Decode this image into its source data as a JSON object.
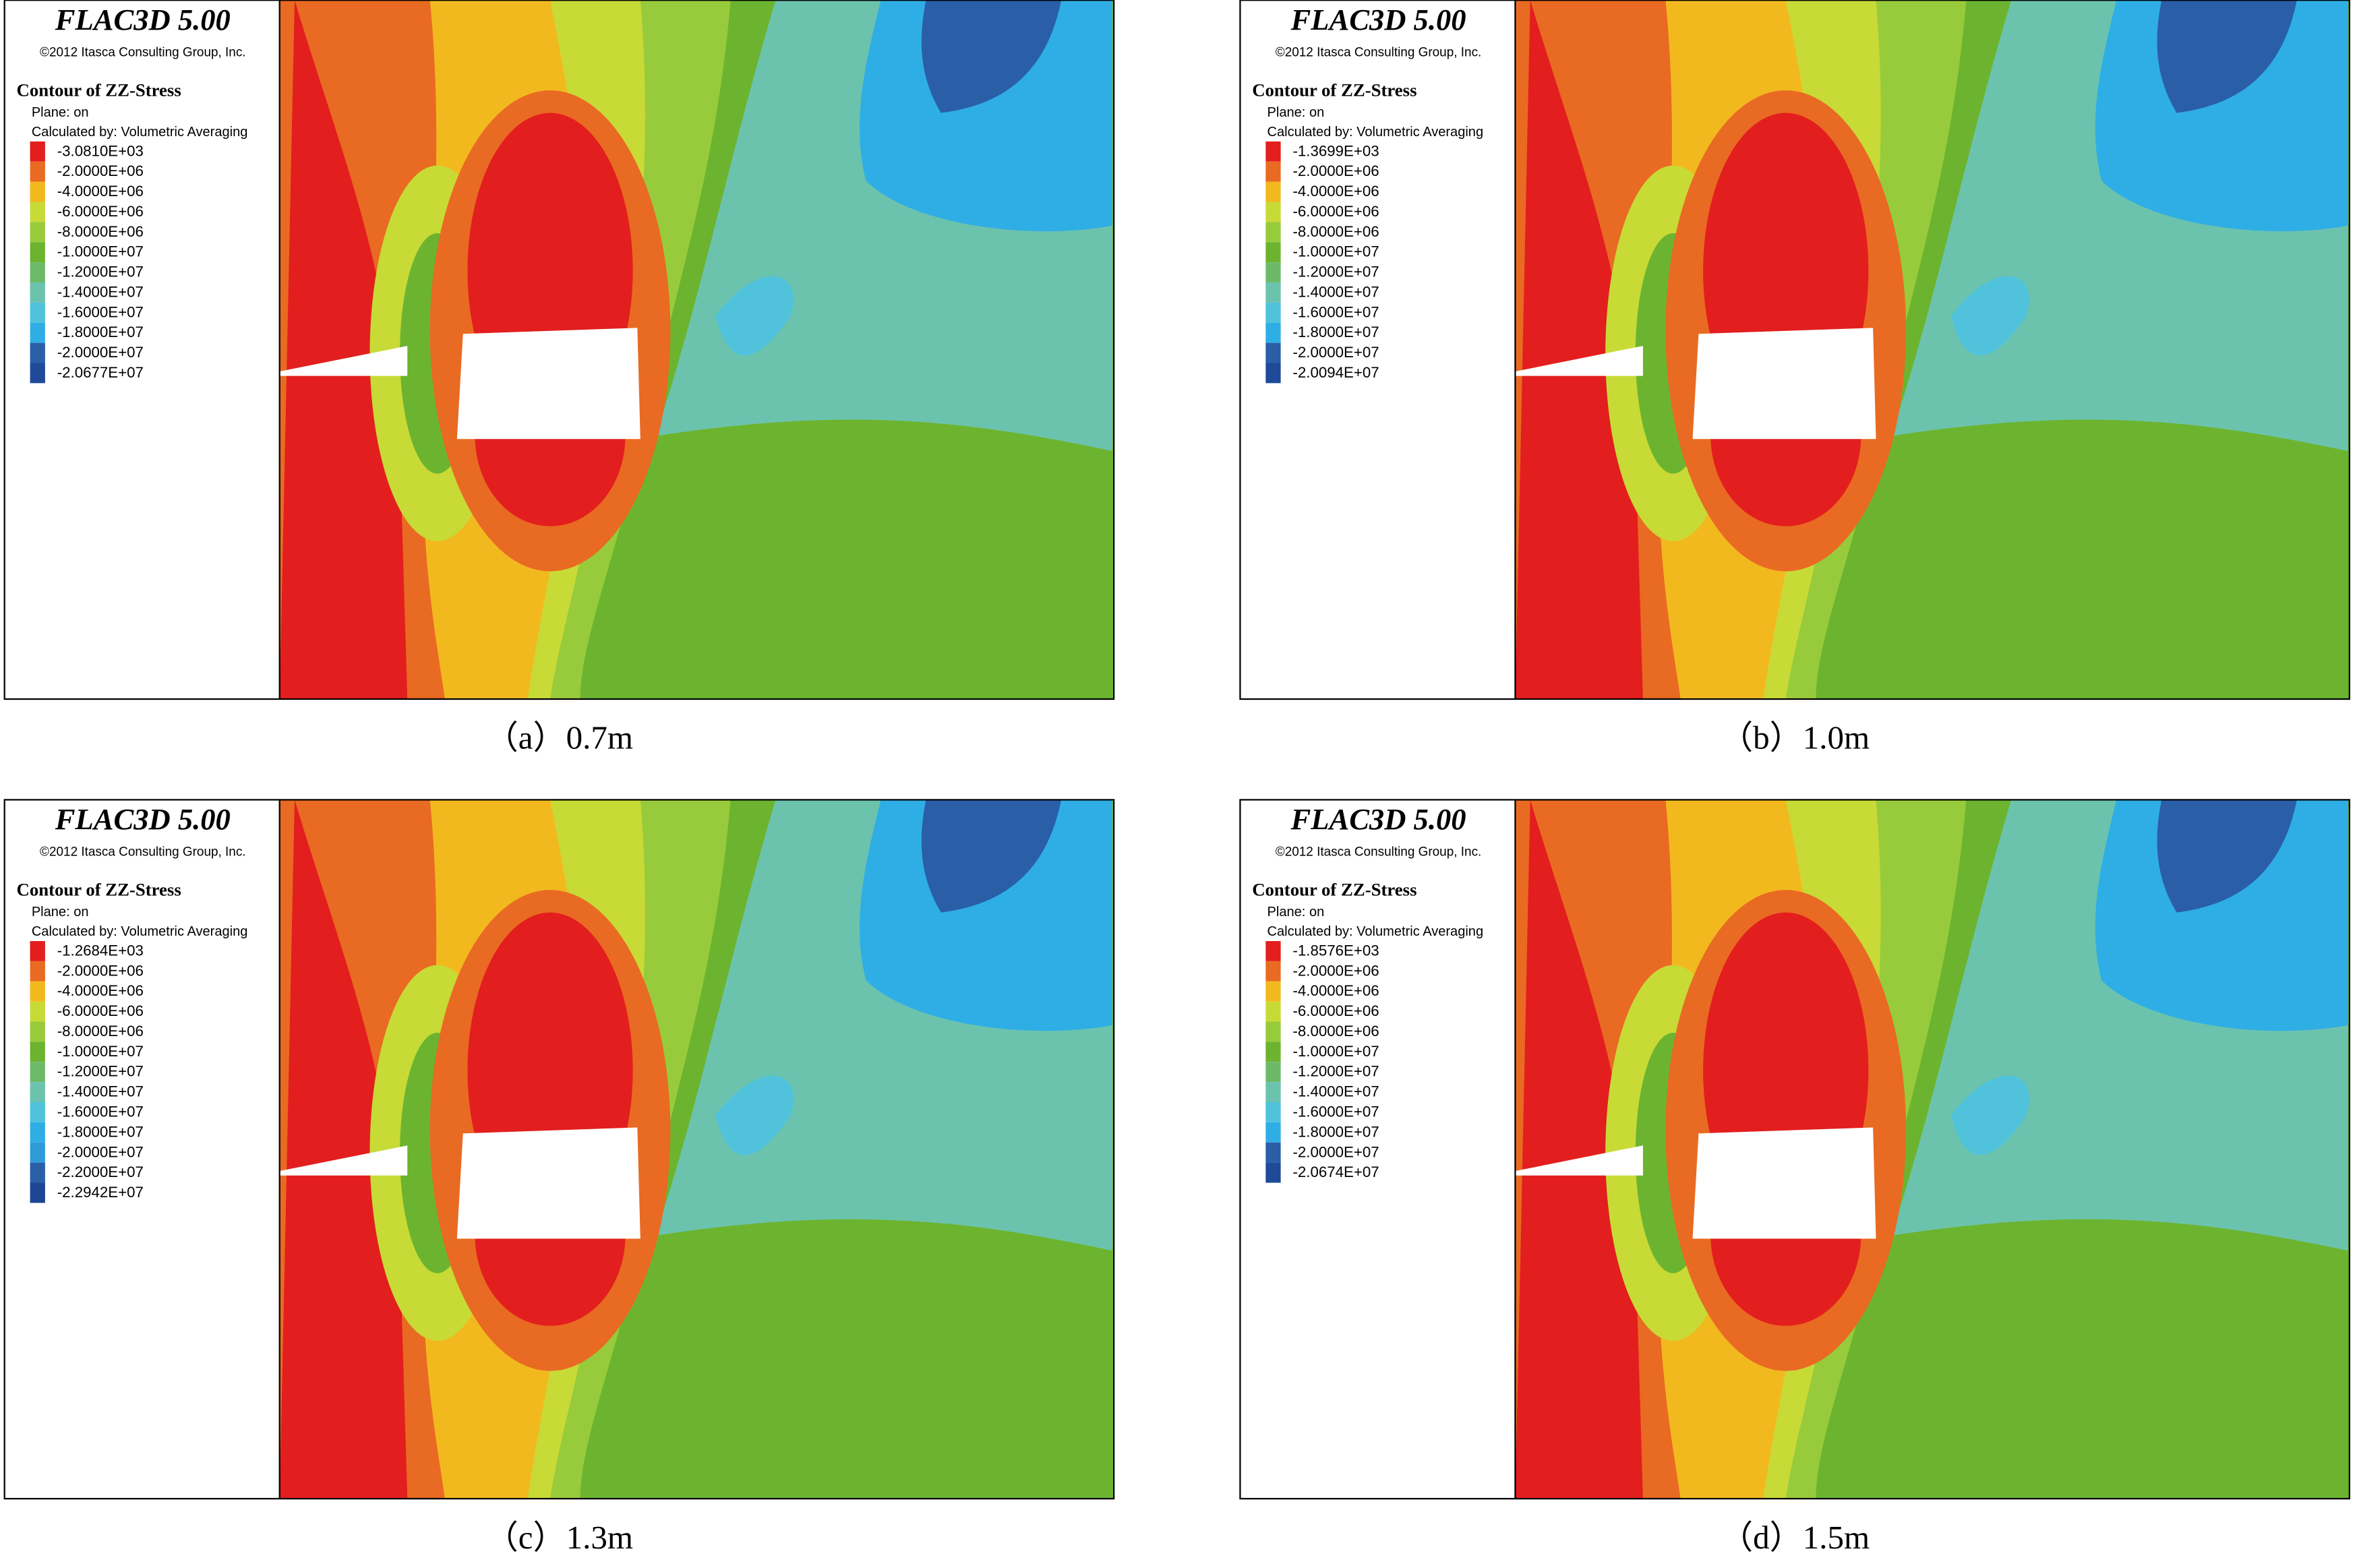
{
  "panels": [
    {
      "title": "FLAC3D 5.00",
      "copyright": "©2012 Itasca Consulting Group, Inc.",
      "contour": "Contour of ZZ-Stress",
      "plane": "Plane: on",
      "calculated": "Calculated by: Volumetric Averaging",
      "legend": [
        {
          "label": "-3.0810E+03",
          "color": "#e31e1e"
        },
        {
          "label": "-2.0000E+06",
          "color": "#e96a22"
        },
        {
          "label": "-4.0000E+06",
          "color": "#f2b91f"
        },
        {
          "label": "-6.0000E+06",
          "color": "#c8da36"
        },
        {
          "label": "-8.0000E+06",
          "color": "#98cb3c"
        },
        {
          "label": "-1.0000E+07",
          "color": "#6cb42f"
        },
        {
          "label": "-1.2000E+07",
          "color": "#6cba68"
        },
        {
          "label": "-1.4000E+07",
          "color": "#6cc3ad"
        },
        {
          "label": "-1.6000E+07",
          "color": "#50c2dc"
        },
        {
          "label": "-1.8000E+07",
          "color": "#2faee6"
        },
        {
          "label": "-2.0000E+07",
          "color": "#2a5fa8"
        },
        {
          "label": "-2.0677E+07",
          "color": "#1f4a9a"
        }
      ],
      "caption": "（a）0.7m"
    },
    {
      "title": "FLAC3D 5.00",
      "copyright": "©2012 Itasca Consulting Group, Inc.",
      "contour": "Contour of ZZ-Stress",
      "plane": "Plane: on",
      "calculated": "Calculated by: Volumetric Averaging",
      "legend": [
        {
          "label": "-1.3699E+03",
          "color": "#e31e1e"
        },
        {
          "label": "-2.0000E+06",
          "color": "#e96a22"
        },
        {
          "label": "-4.0000E+06",
          "color": "#f2b91f"
        },
        {
          "label": "-6.0000E+06",
          "color": "#c8da36"
        },
        {
          "label": "-8.0000E+06",
          "color": "#98cb3c"
        },
        {
          "label": "-1.0000E+07",
          "color": "#6cb42f"
        },
        {
          "label": "-1.2000E+07",
          "color": "#6cba68"
        },
        {
          "label": "-1.4000E+07",
          "color": "#6cc3ad"
        },
        {
          "label": "-1.6000E+07",
          "color": "#50c2dc"
        },
        {
          "label": "-1.8000E+07",
          "color": "#2faee6"
        },
        {
          "label": "-2.0000E+07",
          "color": "#2a5fa8"
        },
        {
          "label": "-2.0094E+07",
          "color": "#1f4a9a"
        }
      ],
      "caption": "（b）1.0m"
    },
    {
      "title": "FLAC3D 5.00",
      "copyright": "©2012 Itasca Consulting Group, Inc.",
      "contour": "Contour of ZZ-Stress",
      "plane": "Plane: on",
      "calculated": "Calculated by: Volumetric Averaging",
      "legend": [
        {
          "label": "-1.2684E+03",
          "color": "#e31e1e"
        },
        {
          "label": "-2.0000E+06",
          "color": "#e96a22"
        },
        {
          "label": "-4.0000E+06",
          "color": "#f2b91f"
        },
        {
          "label": "-6.0000E+06",
          "color": "#c8da36"
        },
        {
          "label": "-8.0000E+06",
          "color": "#98cb3c"
        },
        {
          "label": "-1.0000E+07",
          "color": "#6cb42f"
        },
        {
          "label": "-1.2000E+07",
          "color": "#6cba68"
        },
        {
          "label": "-1.4000E+07",
          "color": "#6cc3ad"
        },
        {
          "label": "-1.6000E+07",
          "color": "#50c2dc"
        },
        {
          "label": "-1.8000E+07",
          "color": "#2faee6"
        },
        {
          "label": "-2.0000E+07",
          "color": "#2f9bd8"
        },
        {
          "label": "-2.2000E+07",
          "color": "#2a5fa8"
        },
        {
          "label": "-2.2942E+07",
          "color": "#1c4596"
        }
      ],
      "caption": "（c）1.3m"
    },
    {
      "title": "FLAC3D 5.00",
      "copyright": "©2012 Itasca Consulting Group, Inc.",
      "contour": "Contour of ZZ-Stress",
      "plane": "Plane: on",
      "calculated": "Calculated by: Volumetric Averaging",
      "legend": [
        {
          "label": "-1.8576E+03",
          "color": "#e31e1e"
        },
        {
          "label": "-2.0000E+06",
          "color": "#e96a22"
        },
        {
          "label": "-4.0000E+06",
          "color": "#f2b91f"
        },
        {
          "label": "-6.0000E+06",
          "color": "#c8da36"
        },
        {
          "label": "-8.0000E+06",
          "color": "#98cb3c"
        },
        {
          "label": "-1.0000E+07",
          "color": "#6cb42f"
        },
        {
          "label": "-1.2000E+07",
          "color": "#6cba68"
        },
        {
          "label": "-1.4000E+07",
          "color": "#6cc3ad"
        },
        {
          "label": "-1.6000E+07",
          "color": "#50c2dc"
        },
        {
          "label": "-1.8000E+07",
          "color": "#2faee6"
        },
        {
          "label": "-2.0000E+07",
          "color": "#2a5fa8"
        },
        {
          "label": "-2.0674E+07",
          "color": "#1f4a9a"
        }
      ],
      "caption": "（d）1.5m"
    }
  ]
}
